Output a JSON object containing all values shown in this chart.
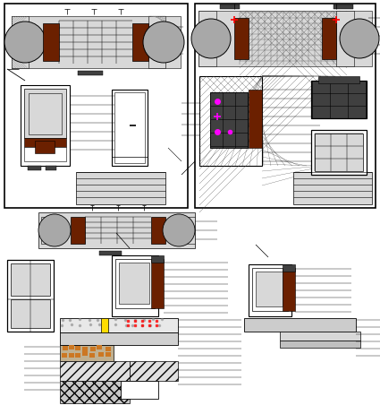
{
  "white": "#ffffff",
  "black": "#000000",
  "dark_brown": "#6b2000",
  "gray": "#a8a8a8",
  "light_gray": "#d8d8d8",
  "dark_gray": "#404040",
  "med_gray": "#888888",
  "yellow": "#ffdd00",
  "magenta": "#ff00ff",
  "red": "#ff0000",
  "orange": "#cc7722",
  "concrete": "#c0b090",
  "fig_w": 4.25,
  "fig_h": 4.62,
  "dpi": 100
}
